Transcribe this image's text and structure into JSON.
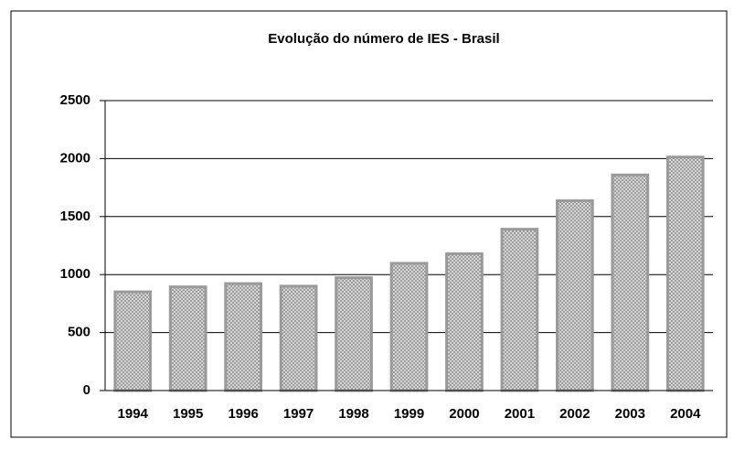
{
  "chart_data": {
    "type": "bar",
    "title": "Evolução do número de IES - Brasil",
    "categories": [
      "1994",
      "1995",
      "1996",
      "1997",
      "1998",
      "1999",
      "2000",
      "2001",
      "2002",
      "2003",
      "2004"
    ],
    "values": [
      851,
      894,
      922,
      900,
      973,
      1097,
      1180,
      1391,
      1637,
      1859,
      2013
    ],
    "color": "#9a9a9a",
    "ylim": [
      0,
      2500
    ],
    "yticks": [
      0,
      500,
      1000,
      1500,
      2000,
      2500
    ],
    "grid": true
  }
}
